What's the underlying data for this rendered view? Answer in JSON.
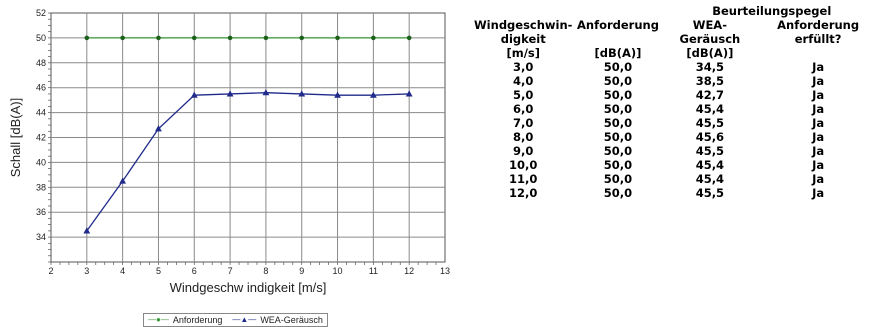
{
  "chart_data": {
    "type": "line",
    "xlabel": "Windgeschw indigkeit [m/s]",
    "ylabel": "Schall [dB(A)]",
    "xlim": [
      2,
      13
    ],
    "ylim": [
      32,
      52
    ],
    "x_ticks": [
      "2",
      "3",
      "4",
      "5",
      "6",
      "7",
      "8",
      "9",
      "10",
      "11",
      "12",
      "13"
    ],
    "y_ticks": [
      "34",
      "36",
      "38",
      "40",
      "42",
      "44",
      "46",
      "48",
      "50",
      "52"
    ],
    "grid": true,
    "legend_placement": "bottom",
    "x": [
      3,
      4,
      5,
      6,
      7,
      8,
      9,
      10,
      11,
      12
    ],
    "series": [
      {
        "name": "Anforderung",
        "values": [
          50.0,
          50.0,
          50.0,
          50.0,
          50.0,
          50.0,
          50.0,
          50.0,
          50.0,
          50.0
        ],
        "color": "#3a9a3a",
        "marker": "circle"
      },
      {
        "name": "WEA-Geräusch",
        "values": [
          34.5,
          38.5,
          42.7,
          45.4,
          45.5,
          45.6,
          45.5,
          45.4,
          45.4,
          45.5
        ],
        "color": "#1f2a8a",
        "marker": "triangle"
      }
    ]
  },
  "table": {
    "group_header": "Beurteilungspegel",
    "headers": [
      "Windgeschwin-\ndigkeit",
      "Anforderung",
      "WEA-Geräusch",
      "Anforderung erfüllt?"
    ],
    "units": [
      "[m/s]",
      "[dB(A)]",
      "[dB(A)]",
      ""
    ],
    "rows": [
      [
        "3,0",
        "50,0",
        "34,5",
        "Ja"
      ],
      [
        "4,0",
        "50,0",
        "38,5",
        "Ja"
      ],
      [
        "5,0",
        "50,0",
        "42,7",
        "Ja"
      ],
      [
        "6,0",
        "50,0",
        "45,4",
        "Ja"
      ],
      [
        "7,0",
        "50,0",
        "45,5",
        "Ja"
      ],
      [
        "8,0",
        "50,0",
        "45,6",
        "Ja"
      ],
      [
        "9,0",
        "50,0",
        "45,5",
        "Ja"
      ],
      [
        "10,0",
        "50,0",
        "45,4",
        "Ja"
      ],
      [
        "11,0",
        "50,0",
        "45,4",
        "Ja"
      ],
      [
        "12,0",
        "50,0",
        "45,5",
        "Ja"
      ]
    ]
  }
}
